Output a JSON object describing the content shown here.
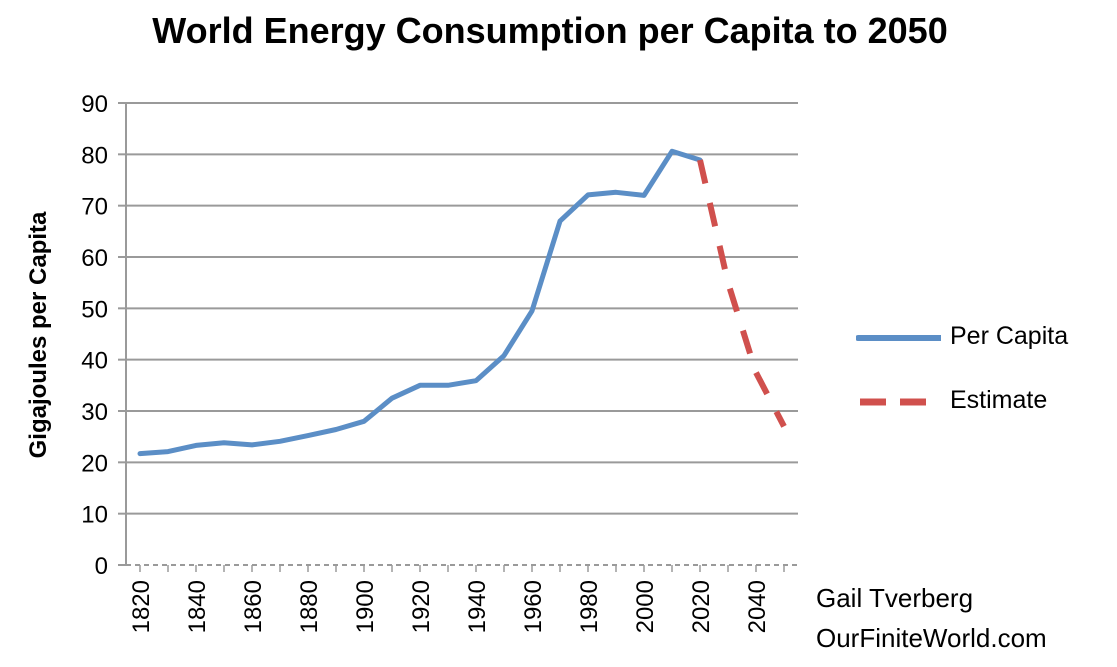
{
  "chart_data": {
    "type": "line",
    "title": "World Energy Consumption per Capita to 2050",
    "ylabel": "Gigajoules per Capita",
    "xlabel": "",
    "ylim": [
      0,
      90
    ],
    "yticks": [
      0,
      10,
      20,
      30,
      40,
      50,
      60,
      70,
      80,
      90
    ],
    "xlim": [
      1815,
      2055
    ],
    "xticks": [
      1820,
      1840,
      1860,
      1880,
      1900,
      1920,
      1940,
      1960,
      1980,
      2000,
      2020,
      2040
    ],
    "grid": "horizontal",
    "legend_position": "right",
    "series": [
      {
        "name": "Per Capita",
        "style": "solid",
        "color": "#5b8ec6",
        "x": [
          1820,
          1830,
          1840,
          1850,
          1860,
          1870,
          1880,
          1890,
          1900,
          1910,
          1920,
          1930,
          1940,
          1950,
          1960,
          1970,
          1980,
          1990,
          2000,
          2010,
          2020
        ],
        "y": [
          21.7,
          22.1,
          23.3,
          23.8,
          23.4,
          24.1,
          25.2,
          26.4,
          28.0,
          32.5,
          35.0,
          35.0,
          35.9,
          40.8,
          49.5,
          67.0,
          72.1,
          72.6,
          72.0,
          80.6,
          78.9
        ]
      },
      {
        "name": "Estimate",
        "style": "dashed",
        "color": "#d0504d",
        "x": [
          2020,
          2030,
          2040,
          2050
        ],
        "y": [
          78.9,
          55.0,
          37.5,
          27.0
        ]
      }
    ]
  },
  "credit": {
    "author": "Gail Tverberg",
    "site": "OurFiniteWorld.com"
  }
}
